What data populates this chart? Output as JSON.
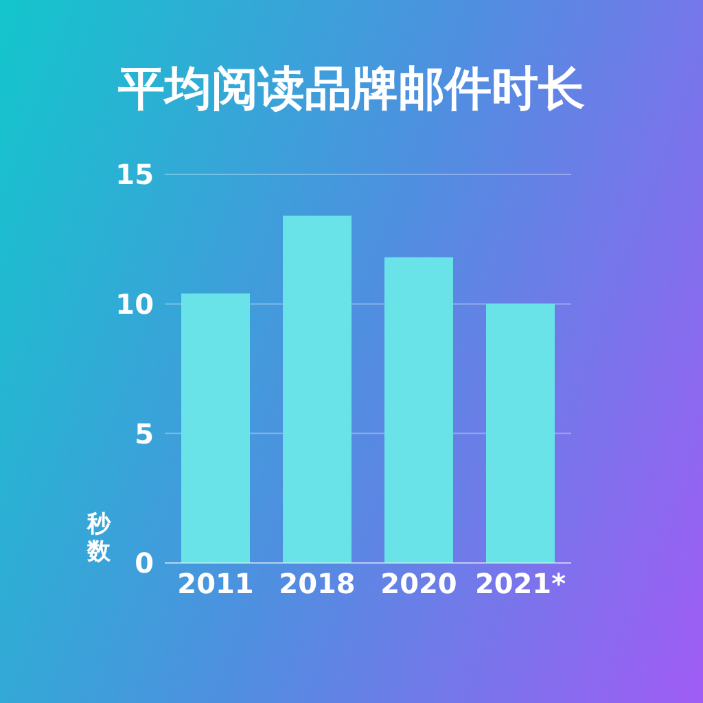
{
  "chart_data": {
    "type": "bar",
    "title": "平均阅读品牌邮件时长",
    "ylabel": "秒数",
    "categories": [
      "2011",
      "2018",
      "2020",
      "2021*"
    ],
    "values": [
      10.4,
      13.4,
      11.8,
      10.0
    ],
    "color": "#6ae3e8",
    "ylim": [
      0,
      15
    ],
    "yticks": [
      0,
      5,
      10,
      15
    ],
    "grid": "y",
    "legend": false
  }
}
